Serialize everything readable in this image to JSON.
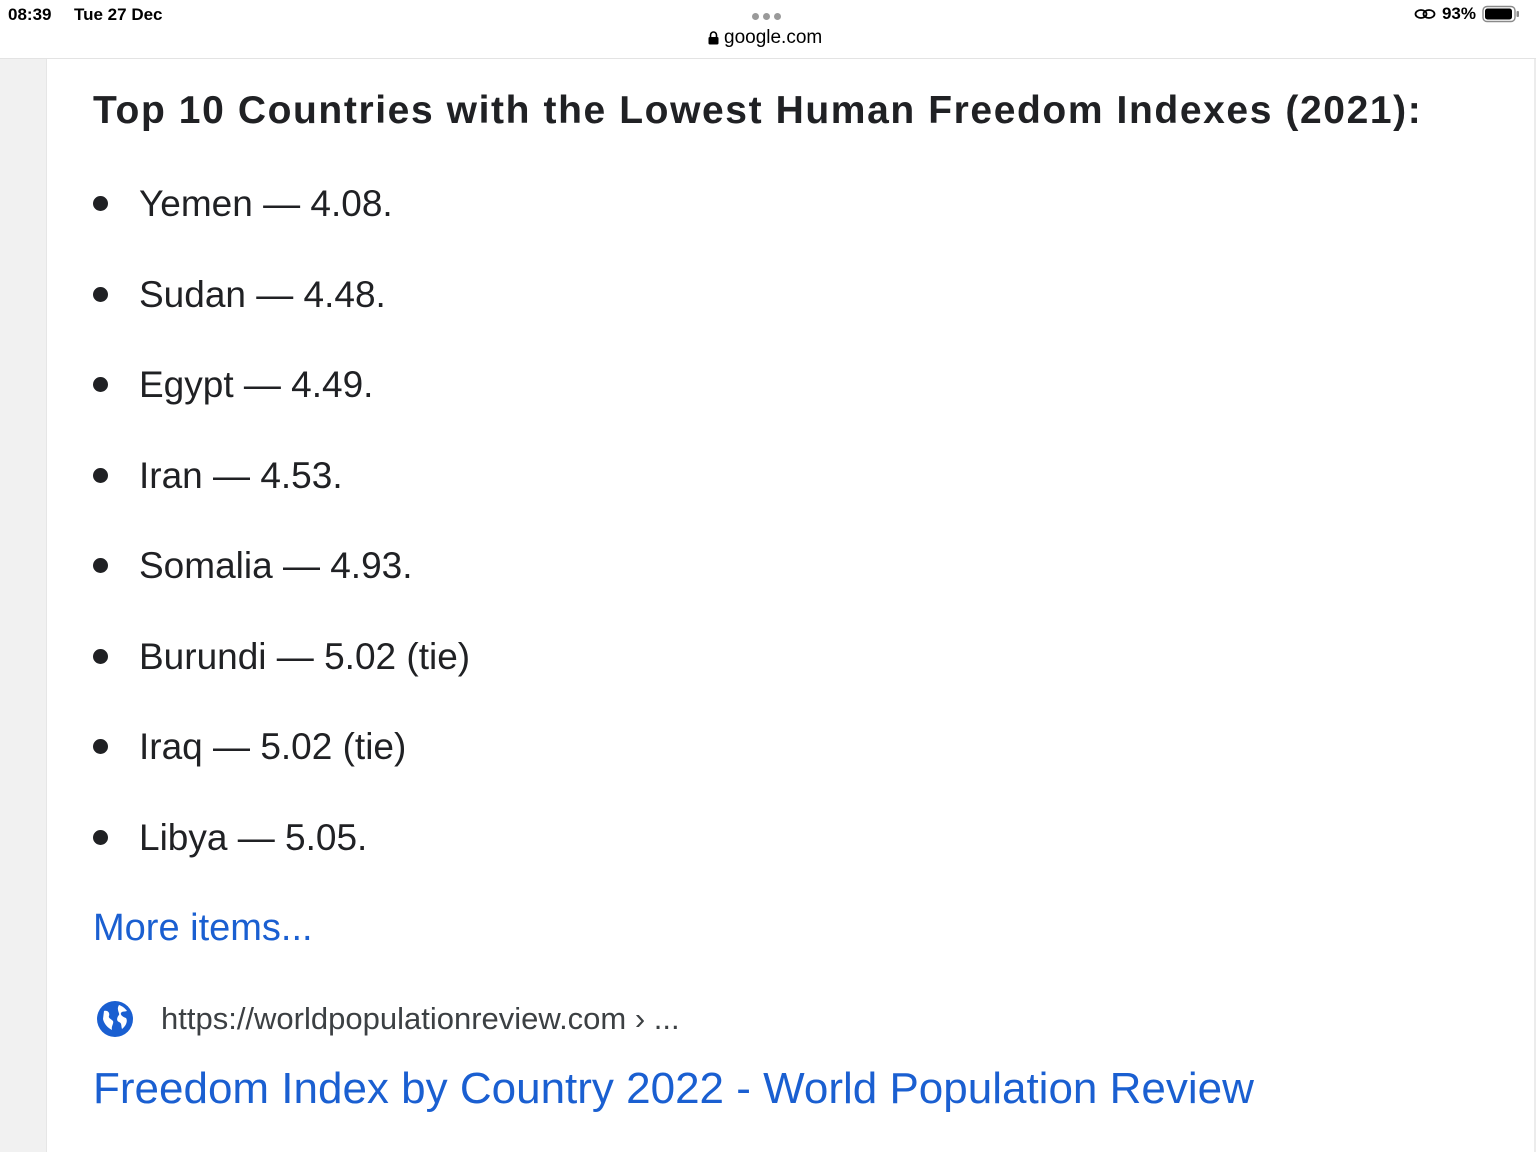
{
  "status_bar": {
    "time": "08:39",
    "date": "Tue 27 Dec",
    "url": "google.com",
    "battery_percent": "93%"
  },
  "snippet": {
    "heading": "Top 10 Countries with the Lowest Human Freedom Indexes (2021):",
    "items": [
      "Yemen — 4.08.",
      "Sudan — 4.48.",
      "Egypt — 4.49.",
      "Iran — 4.53.",
      "Somalia — 4.93.",
      "Burundi — 5.02 (tie)",
      "Iraq — 5.02 (tie)",
      "Libya — 5.05."
    ],
    "more_link": "More items..."
  },
  "result": {
    "source_url": "https://worldpopulationreview.com › ...",
    "title": "Freedom Index by Country 2022 - World Population Review"
  },
  "colors": {
    "link": "#1a5fd1",
    "text": "#202124",
    "sidebar": "#f1f1f1"
  },
  "icons": {
    "lock": "lock-icon",
    "link": "link-icon",
    "battery": "battery-icon",
    "globe": "globe-icon",
    "more": "more-dots-icon"
  }
}
